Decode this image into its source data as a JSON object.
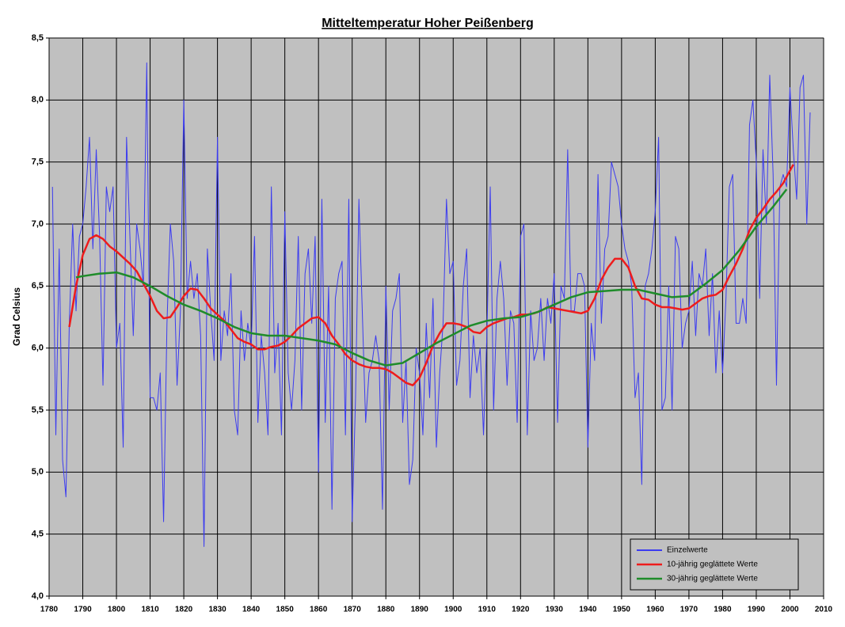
{
  "chart_data": {
    "type": "line",
    "title": "Mitteltemperatur Hoher Peißenberg",
    "y_label": "Grad Celsius",
    "xlim": [
      1780,
      2010
    ],
    "xticks": [
      1780,
      1790,
      1800,
      1810,
      1820,
      1830,
      1840,
      1850,
      1860,
      1870,
      1880,
      1890,
      1900,
      1910,
      1920,
      1930,
      1940,
      1950,
      1960,
      1970,
      1980,
      1990,
      2000,
      2010
    ],
    "ylim": [
      4.0,
      8.5
    ],
    "yticks": [
      {
        "value": 4.0,
        "label": "4,0"
      },
      {
        "value": 4.5,
        "label": "4,5"
      },
      {
        "value": 5.0,
        "label": "5,0"
      },
      {
        "value": 5.5,
        "label": "5,5"
      },
      {
        "value": 6.0,
        "label": "6,0"
      },
      {
        "value": 6.5,
        "label": "6,5"
      },
      {
        "value": 7.0,
        "label": "7,0"
      },
      {
        "value": 7.5,
        "label": "7,5"
      },
      {
        "value": 8.0,
        "label": "8,0"
      },
      {
        "value": 8.5,
        "label": "8,5"
      }
    ],
    "grid": true,
    "legend": "bottom-right",
    "series": [
      {
        "name": "Einzelwerte",
        "color": "#3b3bf0",
        "width": 1,
        "x": [
          1781,
          1782,
          1783,
          1784,
          1785,
          1786,
          1787,
          1788,
          1789,
          1790,
          1791,
          1792,
          1793,
          1794,
          1795,
          1796,
          1797,
          1798,
          1799,
          1800,
          1801,
          1802,
          1803,
          1804,
          1805,
          1806,
          1807,
          1808,
          1809,
          1810,
          1811,
          1812,
          1813,
          1814,
          1815,
          1816,
          1817,
          1818,
          1819,
          1820,
          1821,
          1822,
          1823,
          1824,
          1825,
          1826,
          1827,
          1828,
          1829,
          1830,
          1831,
          1832,
          1833,
          1834,
          1835,
          1836,
          1837,
          1838,
          1839,
          1840,
          1841,
          1842,
          1843,
          1844,
          1845,
          1846,
          1847,
          1848,
          1849,
          1850,
          1851,
          1852,
          1853,
          1854,
          1855,
          1856,
          1857,
          1858,
          1859,
          1860,
          1861,
          1862,
          1863,
          1864,
          1865,
          1866,
          1867,
          1868,
          1869,
          1870,
          1871,
          1872,
          1873,
          1874,
          1875,
          1876,
          1877,
          1878,
          1879,
          1880,
          1881,
          1882,
          1883,
          1884,
          1885,
          1886,
          1887,
          1888,
          1889,
          1890,
          1891,
          1892,
          1893,
          1894,
          1895,
          1896,
          1897,
          1898,
          1899,
          1900,
          1901,
          1902,
          1903,
          1904,
          1905,
          1906,
          1907,
          1908,
          1909,
          1910,
          1911,
          1912,
          1913,
          1914,
          1915,
          1916,
          1917,
          1918,
          1919,
          1920,
          1921,
          1922,
          1923,
          1924,
          1925,
          1926,
          1927,
          1928,
          1929,
          1930,
          1931,
          1932,
          1933,
          1934,
          1935,
          1936,
          1937,
          1938,
          1939,
          1940,
          1941,
          1942,
          1943,
          1944,
          1945,
          1946,
          1947,
          1948,
          1949,
          1950,
          1951,
          1952,
          1953,
          1954,
          1955,
          1956,
          1957,
          1958,
          1959,
          1960,
          1961,
          1962,
          1963,
          1964,
          1965,
          1966,
          1967,
          1968,
          1969,
          1970,
          1971,
          1972,
          1973,
          1974,
          1975,
          1976,
          1977,
          1978,
          1979,
          1980,
          1981,
          1982,
          1983,
          1984,
          1985,
          1986,
          1987,
          1988,
          1989,
          1990,
          1991,
          1992,
          1993,
          1994,
          1995,
          1996,
          1997,
          1998,
          1999,
          2000,
          2001,
          2002,
          2003,
          2004,
          2005,
          2006
        ],
        "values": [
          7.3,
          5.3,
          6.8,
          5.1,
          4.8,
          6.2,
          7.0,
          6.3,
          6.9,
          7.0,
          7.3,
          7.7,
          6.8,
          7.6,
          6.9,
          5.7,
          7.3,
          7.1,
          7.3,
          6.0,
          6.2,
          5.2,
          7.7,
          6.9,
          6.1,
          7.0,
          6.8,
          6.5,
          8.3,
          5.6,
          5.6,
          5.5,
          5.8,
          4.6,
          6.2,
          7.0,
          6.7,
          5.7,
          6.3,
          8.0,
          6.4,
          6.7,
          6.4,
          6.6,
          6.1,
          4.4,
          6.8,
          6.3,
          5.9,
          7.7,
          5.9,
          6.3,
          6.1,
          6.6,
          5.5,
          5.3,
          6.3,
          5.9,
          6.2,
          6.0,
          6.9,
          5.4,
          6.1,
          5.8,
          5.3,
          7.3,
          5.8,
          6.2,
          5.3,
          7.1,
          5.8,
          5.5,
          5.9,
          6.9,
          5.5,
          6.6,
          6.8,
          6.2,
          6.9,
          5.0,
          7.2,
          5.4,
          6.5,
          4.7,
          6.4,
          6.6,
          6.7,
          5.3,
          7.2,
          4.6,
          5.6,
          7.2,
          6.3,
          5.4,
          5.8,
          5.9,
          6.1,
          5.9,
          4.7,
          6.5,
          5.5,
          6.3,
          6.4,
          6.6,
          5.4,
          5.9,
          4.9,
          5.1,
          6.0,
          5.8,
          5.3,
          6.2,
          5.6,
          6.4,
          5.2,
          5.8,
          6.2,
          7.2,
          6.6,
          6.7,
          5.7,
          5.9,
          6.5,
          6.8,
          5.6,
          6.1,
          5.8,
          6.0,
          5.3,
          6.1,
          7.3,
          5.5,
          6.4,
          6.7,
          6.4,
          5.7,
          6.3,
          6.2,
          5.4,
          6.9,
          7.0,
          5.3,
          6.3,
          5.9,
          6.0,
          6.4,
          5.9,
          6.4,
          6.2,
          6.6,
          5.4,
          6.5,
          6.4,
          7.6,
          6.3,
          6.3,
          6.6,
          6.6,
          6.5,
          5.2,
          6.2,
          5.9,
          7.4,
          6.2,
          6.8,
          6.9,
          7.5,
          7.4,
          7.3,
          7.0,
          6.8,
          6.7,
          6.5,
          5.6,
          5.8,
          4.9,
          6.5,
          6.6,
          6.8,
          7.1,
          7.7,
          5.5,
          5.6,
          6.5,
          5.5,
          6.9,
          6.8,
          6.0,
          6.2,
          6.3,
          6.7,
          6.1,
          6.6,
          6.5,
          6.8,
          6.1,
          6.6,
          5.8,
          6.3,
          5.8,
          6.4,
          7.3,
          7.4,
          6.2,
          6.2,
          6.4,
          6.2,
          7.8,
          8.0,
          7.5,
          6.4,
          7.6,
          7.0,
          8.2,
          7.4,
          5.7,
          7.3,
          7.4,
          7.3,
          8.1,
          7.6,
          7.2,
          8.1,
          8.2,
          7.0,
          7.9
        ]
      },
      {
        "name": "10-jährig geglättete Werte",
        "color": "#ee1c1c",
        "width": 2.5,
        "x": [
          1786,
          1788,
          1790,
          1792,
          1794,
          1796,
          1798,
          1800,
          1802,
          1804,
          1806,
          1808,
          1810,
          1812,
          1814,
          1816,
          1818,
          1820,
          1822,
          1824,
          1826,
          1828,
          1830,
          1832,
          1834,
          1836,
          1838,
          1840,
          1842,
          1844,
          1846,
          1848,
          1850,
          1852,
          1854,
          1856,
          1858,
          1860,
          1862,
          1864,
          1866,
          1868,
          1870,
          1872,
          1874,
          1876,
          1878,
          1880,
          1882,
          1884,
          1886,
          1888,
          1890,
          1892,
          1894,
          1896,
          1898,
          1900,
          1902,
          1904,
          1906,
          1908,
          1910,
          1912,
          1914,
          1916,
          1918,
          1920,
          1922,
          1924,
          1926,
          1928,
          1930,
          1932,
          1934,
          1936,
          1938,
          1940,
          1942,
          1944,
          1946,
          1948,
          1950,
          1952,
          1954,
          1956,
          1958,
          1960,
          1962,
          1964,
          1966,
          1968,
          1970,
          1972,
          1974,
          1976,
          1978,
          1980,
          1982,
          1984,
          1986,
          1988,
          1990,
          1992,
          1994,
          1996,
          1998,
          2000,
          2001
        ],
        "values": [
          6.17,
          6.5,
          6.75,
          6.88,
          6.91,
          6.88,
          6.82,
          6.78,
          6.73,
          6.68,
          6.62,
          6.52,
          6.42,
          6.3,
          6.24,
          6.25,
          6.33,
          6.42,
          6.48,
          6.47,
          6.4,
          6.32,
          6.27,
          6.22,
          6.15,
          6.08,
          6.05,
          6.03,
          5.99,
          5.99,
          6.01,
          6.02,
          6.05,
          6.1,
          6.16,
          6.2,
          6.24,
          6.25,
          6.2,
          6.1,
          6.03,
          5.95,
          5.9,
          5.87,
          5.85,
          5.84,
          5.84,
          5.83,
          5.8,
          5.76,
          5.72,
          5.7,
          5.76,
          5.88,
          6.02,
          6.12,
          6.2,
          6.2,
          6.19,
          6.17,
          6.13,
          6.12,
          6.17,
          6.2,
          6.22,
          6.24,
          6.25,
          6.27,
          6.27,
          6.28,
          6.3,
          6.33,
          6.32,
          6.31,
          6.3,
          6.29,
          6.28,
          6.3,
          6.4,
          6.55,
          6.65,
          6.72,
          6.72,
          6.65,
          6.5,
          6.4,
          6.39,
          6.35,
          6.33,
          6.33,
          6.32,
          6.31,
          6.32,
          6.36,
          6.4,
          6.42,
          6.43,
          6.47,
          6.58,
          6.68,
          6.8,
          6.95,
          7.05,
          7.12,
          7.2,
          7.26,
          7.33,
          7.43,
          7.48
        ]
      },
      {
        "name": "30-jährig geglättete Werte",
        "color": "#1e8c2a",
        "width": 2.5,
        "x": [
          1788,
          1790,
          1795,
          1800,
          1805,
          1810,
          1815,
          1820,
          1825,
          1830,
          1835,
          1840,
          1845,
          1850,
          1855,
          1860,
          1865,
          1870,
          1875,
          1880,
          1885,
          1890,
          1895,
          1900,
          1905,
          1910,
          1915,
          1920,
          1925,
          1930,
          1935,
          1940,
          1945,
          1950,
          1955,
          1960,
          1965,
          1970,
          1975,
          1980,
          1985,
          1990,
          1995,
          1999
        ],
        "values": [
          6.57,
          6.58,
          6.6,
          6.61,
          6.57,
          6.5,
          6.42,
          6.35,
          6.3,
          6.24,
          6.17,
          6.12,
          6.1,
          6.1,
          6.08,
          6.06,
          6.03,
          5.96,
          5.9,
          5.86,
          5.88,
          5.96,
          6.04,
          6.11,
          6.18,
          6.22,
          6.24,
          6.25,
          6.29,
          6.35,
          6.41,
          6.45,
          6.46,
          6.47,
          6.47,
          6.44,
          6.41,
          6.42,
          6.52,
          6.63,
          6.79,
          6.98,
          7.14,
          7.28
        ]
      }
    ]
  }
}
